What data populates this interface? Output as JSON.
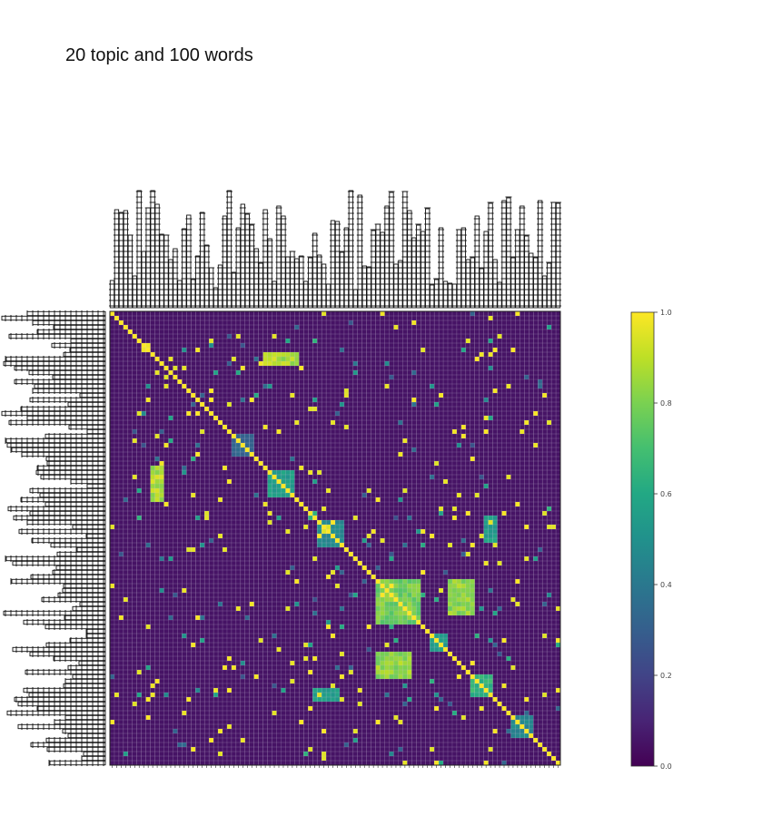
{
  "page": {
    "title": "20 topic and 100 words"
  },
  "chart_data": {
    "type": "heatmap",
    "title": "",
    "xlabel": "",
    "ylabel": "",
    "grid": true,
    "colormap": "viridis",
    "vmin": 0.0,
    "vmax": 1.0,
    "n_rows": 100,
    "n_cols": 100,
    "colorbar": {
      "ticks": [
        0.0,
        0.2,
        0.4,
        0.6,
        0.8,
        1.0
      ],
      "tick_labels": [
        "0.0",
        "0.2",
        "0.4",
        "0.6",
        "0.8",
        "1.0"
      ]
    },
    "background_value": 0.05,
    "diagonal_value": 1.0,
    "blocks": [
      {
        "rows": [
          35,
          40
        ],
        "cols": [
          35,
          40
        ],
        "value": 0.6
      },
      {
        "rows": [
          46,
          51
        ],
        "cols": [
          46,
          51
        ],
        "value": 0.5
      },
      {
        "rows": [
          59,
          68
        ],
        "cols": [
          59,
          68
        ],
        "value": 0.85
      },
      {
        "rows": [
          71,
          74
        ],
        "cols": [
          71,
          74
        ],
        "value": 0.6
      },
      {
        "rows": [
          80,
          84
        ],
        "cols": [
          80,
          84
        ],
        "value": 0.7
      },
      {
        "rows": [
          89,
          93
        ],
        "cols": [
          89,
          93
        ],
        "value": 0.5
      },
      {
        "rows": [
          27,
          31
        ],
        "cols": [
          27,
          31
        ],
        "value": 0.35
      },
      {
        "rows": [
          9,
          11
        ],
        "cols": [
          34,
          41
        ],
        "value": 0.95
      },
      {
        "rows": [
          34,
          41
        ],
        "cols": [
          9,
          11
        ],
        "value": 0.95
      },
      {
        "rows": [
          59,
          66
        ],
        "cols": [
          75,
          80
        ],
        "value": 0.9
      },
      {
        "rows": [
          75,
          80
        ],
        "cols": [
          59,
          66
        ],
        "value": 0.9
      },
      {
        "rows": [
          83,
          85
        ],
        "cols": [
          45,
          50
        ],
        "value": 0.6
      },
      {
        "rows": [
          45,
          50
        ],
        "cols": [
          83,
          85
        ],
        "value": 0.6
      }
    ],
    "scatter_seed": 20,
    "scatter_density": 0.045,
    "tick_labels_legible": false
  },
  "colors": {
    "background_cell": "#47266e",
    "grid_line": "#c8c0d8",
    "text": "#111111"
  }
}
